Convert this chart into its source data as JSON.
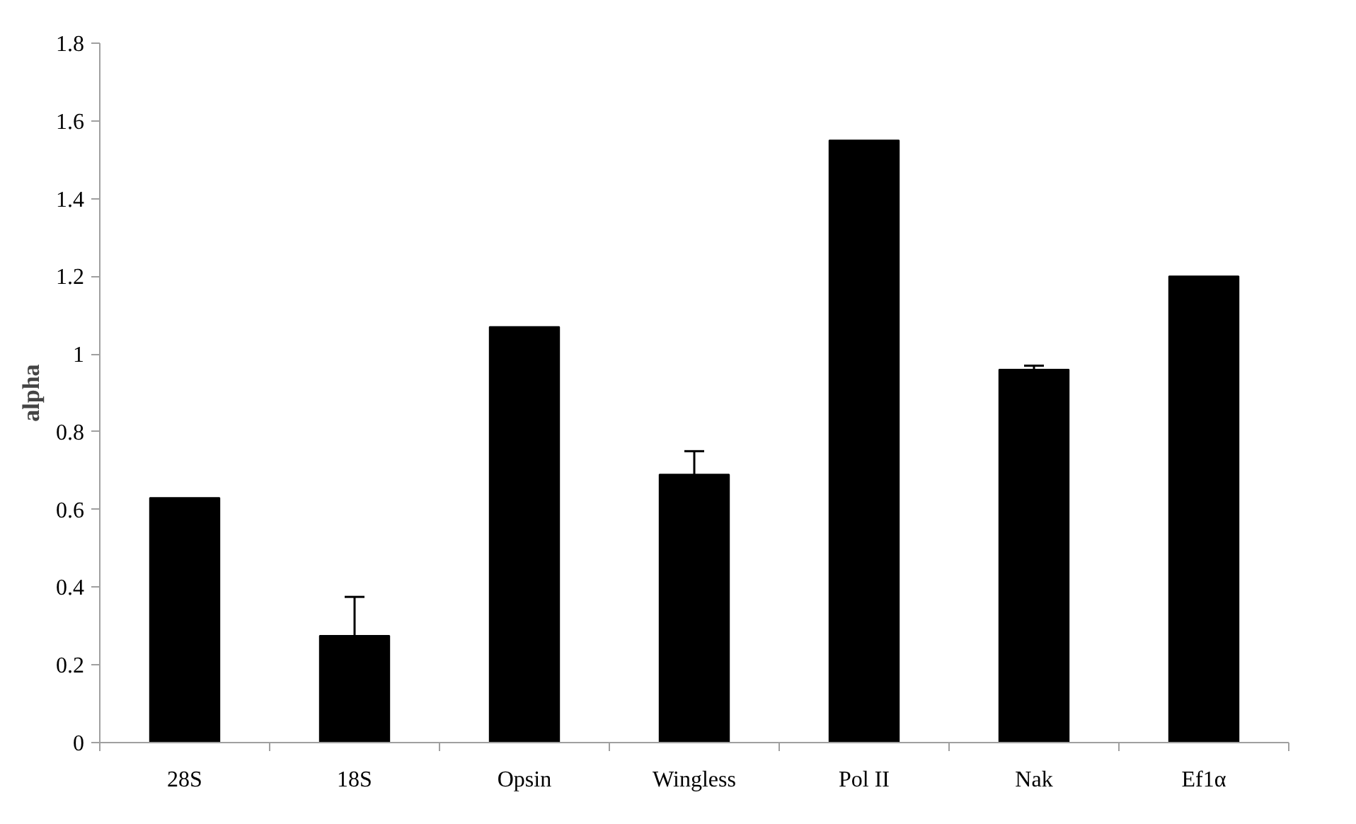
{
  "chart_data": {
    "type": "bar",
    "ylabel": "alpha",
    "categories": [
      "28S",
      "18S",
      "Opsin",
      "Wingless",
      "Pol II",
      "Nak",
      "Ef1α"
    ],
    "values": [
      0.63,
      0.275,
      1.07,
      0.69,
      1.55,
      0.96,
      1.2
    ],
    "errors": [
      null,
      0.1,
      null,
      0.06,
      null,
      0.01,
      null
    ],
    "color": "#000000",
    "ylim": [
      0,
      1.8
    ],
    "yticks": [
      0,
      0.2,
      0.4,
      0.6,
      0.8,
      1,
      1.2,
      1.4,
      1.6,
      1.8
    ],
    "grid": false
  }
}
